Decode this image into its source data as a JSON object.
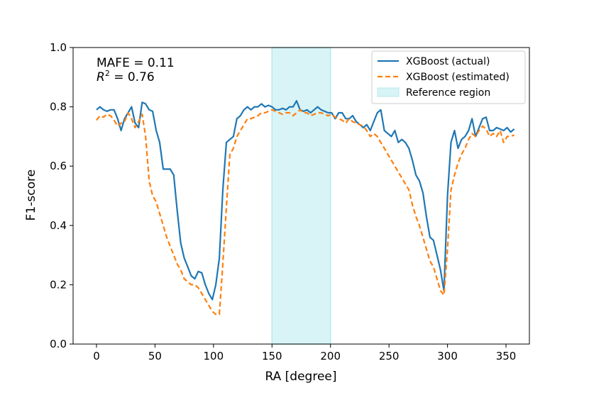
{
  "chart_data": {
    "type": "line",
    "xlabel": "RA [degree]",
    "ylabel": "F1-score",
    "xlim": [
      -20,
      370
    ],
    "ylim": [
      0.0,
      1.0
    ],
    "xticks": [
      0,
      50,
      100,
      150,
      200,
      250,
      300,
      350
    ],
    "yticks": [
      0.0,
      0.2,
      0.4,
      0.6,
      0.8,
      1.0
    ],
    "xtick_labels": [
      "0",
      "50",
      "100",
      "150",
      "200",
      "250",
      "300",
      "350"
    ],
    "ytick_labels": [
      "0.0",
      "0.2",
      "0.4",
      "0.6",
      "0.8",
      "1.0"
    ],
    "grid": false,
    "legend_position": "top-right",
    "annotations": {
      "mafe": "MAFE = 0.11",
      "r2_prefix": "R",
      "r2_exp": "2",
      "r2_suffix": " = 0.76"
    },
    "reference_region": {
      "label": "Reference region",
      "x": [
        150,
        200
      ],
      "color": "#d8f4f6",
      "edge": "#b9e8ec"
    },
    "x": [
      0,
      3,
      6,
      9,
      12,
      15,
      18,
      21,
      24,
      27,
      30,
      33,
      36,
      39,
      42,
      45,
      48,
      51,
      54,
      57,
      60,
      63,
      66,
      69,
      72,
      75,
      78,
      81,
      84,
      87,
      90,
      93,
      96,
      99,
      102,
      105,
      108,
      111,
      114,
      117,
      120,
      123,
      126,
      129,
      132,
      135,
      138,
      141,
      144,
      147,
      150,
      153,
      156,
      159,
      162,
      165,
      168,
      171,
      174,
      177,
      180,
      183,
      186,
      189,
      192,
      195,
      198,
      201,
      204,
      207,
      210,
      213,
      216,
      219,
      222,
      225,
      228,
      231,
      234,
      237,
      240,
      243,
      246,
      249,
      252,
      255,
      258,
      261,
      264,
      267,
      270,
      273,
      276,
      279,
      282,
      285,
      288,
      291,
      294,
      297,
      300,
      303,
      306,
      309,
      312,
      315,
      318,
      321,
      324,
      327,
      330,
      333,
      336,
      339,
      342,
      345,
      348,
      351,
      354,
      357
    ],
    "series": [
      {
        "name": "XGBoost (actual)",
        "color": "#1f77b4",
        "style": "solid",
        "values": [
          0.79,
          0.8,
          0.79,
          0.785,
          0.79,
          0.79,
          0.76,
          0.72,
          0.76,
          0.78,
          0.8,
          0.745,
          0.73,
          0.815,
          0.81,
          0.79,
          0.785,
          0.72,
          0.68,
          0.59,
          0.59,
          0.59,
          0.57,
          0.45,
          0.34,
          0.29,
          0.26,
          0.23,
          0.22,
          0.245,
          0.24,
          0.2,
          0.17,
          0.15,
          0.2,
          0.29,
          0.52,
          0.68,
          0.69,
          0.7,
          0.76,
          0.77,
          0.79,
          0.8,
          0.79,
          0.8,
          0.8,
          0.81,
          0.8,
          0.805,
          0.8,
          0.79,
          0.79,
          0.795,
          0.79,
          0.8,
          0.8,
          0.82,
          0.79,
          0.785,
          0.79,
          0.78,
          0.79,
          0.8,
          0.79,
          0.785,
          0.78,
          0.78,
          0.76,
          0.78,
          0.78,
          0.76,
          0.76,
          0.77,
          0.75,
          0.74,
          0.73,
          0.74,
          0.72,
          0.75,
          0.78,
          0.79,
          0.72,
          0.71,
          0.7,
          0.72,
          0.68,
          0.69,
          0.68,
          0.66,
          0.62,
          0.57,
          0.55,
          0.51,
          0.43,
          0.36,
          0.35,
          0.3,
          0.25,
          0.18,
          0.5,
          0.68,
          0.72,
          0.66,
          0.69,
          0.7,
          0.72,
          0.76,
          0.7,
          0.73,
          0.76,
          0.765,
          0.72,
          0.72,
          0.73,
          0.725,
          0.72,
          0.73,
          0.715,
          0.725
        ]
      },
      {
        "name": "XGBoost (estimated)",
        "color": "#ff7f0e",
        "style": "dashed",
        "values": [
          0.755,
          0.77,
          0.765,
          0.775,
          0.77,
          0.755,
          0.735,
          0.745,
          0.75,
          0.78,
          0.76,
          0.73,
          0.75,
          0.775,
          0.7,
          0.55,
          0.5,
          0.48,
          0.44,
          0.4,
          0.36,
          0.33,
          0.3,
          0.27,
          0.25,
          0.22,
          0.21,
          0.2,
          0.2,
          0.19,
          0.17,
          0.15,
          0.13,
          0.11,
          0.1,
          0.1,
          0.27,
          0.46,
          0.64,
          0.66,
          0.7,
          0.72,
          0.74,
          0.76,
          0.76,
          0.765,
          0.77,
          0.78,
          0.78,
          0.785,
          0.79,
          0.785,
          0.78,
          0.775,
          0.78,
          0.78,
          0.77,
          0.78,
          0.79,
          0.78,
          0.78,
          0.77,
          0.775,
          0.78,
          0.78,
          0.775,
          0.77,
          0.775,
          0.765,
          0.76,
          0.755,
          0.745,
          0.76,
          0.75,
          0.745,
          0.74,
          0.735,
          0.72,
          0.7,
          0.71,
          0.7,
          0.68,
          0.66,
          0.64,
          0.62,
          0.6,
          0.58,
          0.56,
          0.54,
          0.52,
          0.47,
          0.43,
          0.4,
          0.36,
          0.32,
          0.28,
          0.26,
          0.22,
          0.18,
          0.165,
          0.32,
          0.52,
          0.57,
          0.61,
          0.64,
          0.66,
          0.69,
          0.71,
          0.7,
          0.72,
          0.735,
          0.725,
          0.7,
          0.71,
          0.7,
          0.72,
          0.68,
          0.7,
          0.7,
          0.705
        ]
      }
    ]
  }
}
